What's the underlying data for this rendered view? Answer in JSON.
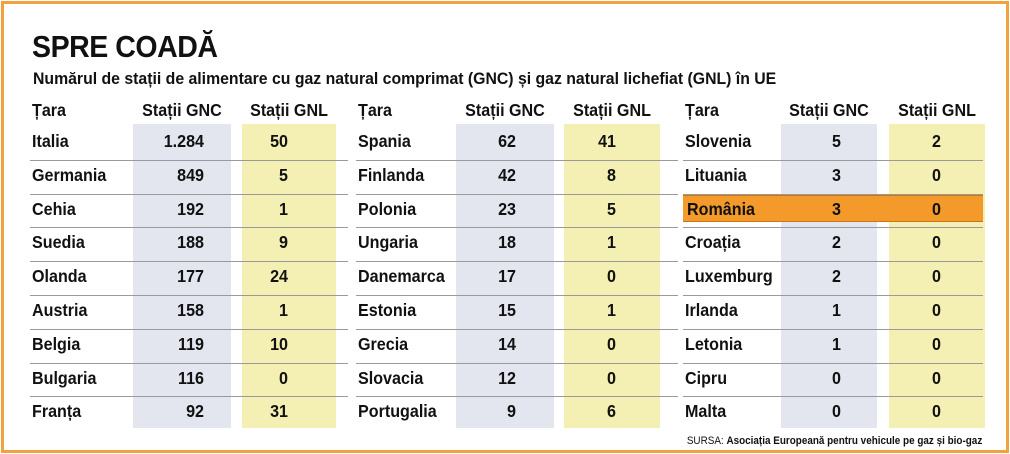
{
  "title": "SPRE COADĂ",
  "subtitle": "Numărul de stații de alimentare cu gaz natural comprimat (GNC) și gaz natural lichefiat (GNL) în UE",
  "source": {
    "label": "SURSA:",
    "text": "Asociația Europeană pentru vehicule pe gaz și bio-gaz"
  },
  "colors": {
    "border": "#f0a23c",
    "gnc_bg": "#e3e6ef",
    "gnl_bg": "#f4efb3",
    "highlight": "#f39a2b"
  },
  "chart_data": {
    "type": "table",
    "columns": [
      "Țara",
      "Stații GNC",
      "Stații GNL"
    ],
    "highlight_country": "România",
    "panels": [
      {
        "rows": [
          {
            "country": "Italia",
            "gnc": "1.284",
            "gnl": "50"
          },
          {
            "country": "Germania",
            "gnc": "849",
            "gnl": "5"
          },
          {
            "country": "Cehia",
            "gnc": "192",
            "gnl": "1"
          },
          {
            "country": "Suedia",
            "gnc": "188",
            "gnl": "9"
          },
          {
            "country": "Olanda",
            "gnc": "177",
            "gnl": "24"
          },
          {
            "country": "Austria",
            "gnc": "158",
            "gnl": "1"
          },
          {
            "country": "Belgia",
            "gnc": "119",
            "gnl": "10"
          },
          {
            "country": "Bulgaria",
            "gnc": "116",
            "gnl": "0"
          },
          {
            "country": "Franța",
            "gnc": "92",
            "gnl": "31"
          }
        ]
      },
      {
        "rows": [
          {
            "country": "Spania",
            "gnc": "62",
            "gnl": "41"
          },
          {
            "country": "Finlanda",
            "gnc": "42",
            "gnl": "8"
          },
          {
            "country": "Polonia",
            "gnc": "23",
            "gnl": "5"
          },
          {
            "country": "Ungaria",
            "gnc": "18",
            "gnl": "1"
          },
          {
            "country": "Danemarca",
            "gnc": "17",
            "gnl": "0"
          },
          {
            "country": "Estonia",
            "gnc": "15",
            "gnl": "1"
          },
          {
            "country": "Grecia",
            "gnc": "14",
            "gnl": "0"
          },
          {
            "country": "Slovacia",
            "gnc": "12",
            "gnl": "0"
          },
          {
            "country": "Portugalia",
            "gnc": "9",
            "gnl": "6"
          }
        ]
      },
      {
        "rows": [
          {
            "country": "Slovenia",
            "gnc": "5",
            "gnl": "2"
          },
          {
            "country": "Lituania",
            "gnc": "3",
            "gnl": "0"
          },
          {
            "country": "România",
            "gnc": "3",
            "gnl": "0"
          },
          {
            "country": "Croația",
            "gnc": "2",
            "gnl": "0"
          },
          {
            "country": "Luxemburg",
            "gnc": "2",
            "gnl": "0"
          },
          {
            "country": "Irlanda",
            "gnc": "1",
            "gnl": "0"
          },
          {
            "country": "Letonia",
            "gnc": "1",
            "gnl": "0"
          },
          {
            "country": "Cipru",
            "gnc": "0",
            "gnl": "0"
          },
          {
            "country": "Malta",
            "gnc": "0",
            "gnl": "0"
          }
        ]
      }
    ]
  }
}
